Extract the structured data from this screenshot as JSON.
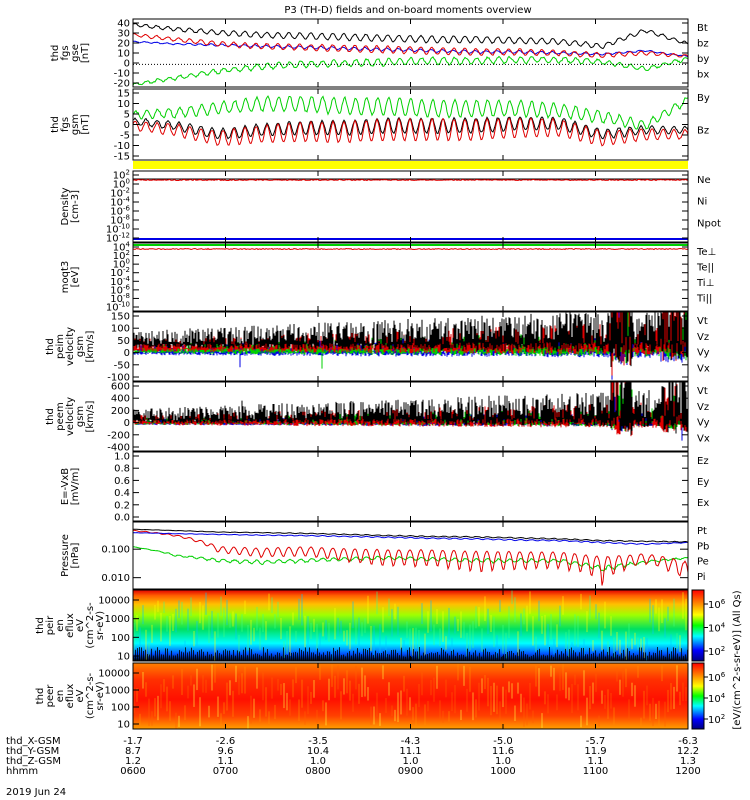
{
  "title": "P3 (TH-D) fields and on-board moments overview",
  "date_label": "2019 Jun 24",
  "colors": {
    "black": "#000000",
    "red": "#e00000",
    "blue": "#0000e6",
    "green": "#00d000",
    "yellow": "#ffff00"
  },
  "chart_data": [
    {
      "type": "line",
      "panel": "fgs_gse",
      "ylabel": [
        "thd",
        "fgs",
        "gse",
        "[nT]"
      ],
      "yticks": [
        "40",
        "30",
        "20",
        "10",
        "0",
        "-10",
        "-20"
      ],
      "ylim": [
        -20,
        40
      ],
      "legend": [
        "Bt",
        "bz",
        "by",
        "bx"
      ],
      "series": [
        {
          "name": "Bt",
          "color": "black",
          "values": [
            35,
            31,
            28,
            26,
            25,
            24,
            23,
            22,
            22,
            21,
            20,
            16,
            30,
            18
          ]
        },
        {
          "name": "bz",
          "color": "red",
          "values": [
            26,
            22,
            18,
            16,
            15,
            14,
            13,
            12,
            11,
            11,
            10,
            8,
            10,
            7
          ]
        },
        {
          "name": "by",
          "color": "blue",
          "values": [
            20,
            18,
            17,
            16,
            15,
            14,
            13,
            12,
            11,
            11,
            10,
            9,
            12,
            7
          ]
        },
        {
          "name": "bx",
          "color": "green",
          "values": [
            -18,
            -12,
            -6,
            -2,
            0,
            1,
            2,
            3,
            3,
            4,
            4,
            2,
            -4,
            5
          ]
        }
      ]
    },
    {
      "type": "line",
      "panel": "fgs_gsm",
      "ylabel": [
        "thd",
        "fgs",
        "gsm",
        "[nT]"
      ],
      "yticks": [
        "15",
        "10",
        "5",
        "0",
        "-5",
        "-10",
        "-15"
      ],
      "ylim": [
        -18,
        15
      ],
      "legend": [
        "By",
        "Bz"
      ],
      "series": [
        {
          "name": "By",
          "color": "green",
          "values": [
            3,
            4,
            6,
            8,
            8,
            7,
            7,
            6,
            6,
            6,
            5,
            2,
            -2,
            10
          ]
        },
        {
          "name": "Bz",
          "color": "red",
          "values": [
            -2,
            -4,
            -8,
            -6,
            -5,
            -5,
            -4,
            -4,
            -4,
            -3,
            -3,
            -8,
            -6,
            -6
          ]
        }
      ]
    },
    {
      "type": "line",
      "panel": "density",
      "ylabel": [
        "Density",
        "[cm-3]"
      ],
      "yticks": [
        "10^2",
        "10^0",
        "10^-2",
        "10^-4",
        "10^-6",
        "10^-8",
        "10^-10",
        "10^-12"
      ],
      "legend": [
        "Ne",
        "Ni",
        "Npot"
      ]
    },
    {
      "type": "line",
      "panel": "temperature",
      "ylabel": [
        "moqt3",
        "[eV]"
      ],
      "yticks": [
        "10^4",
        "10^2",
        "10^0",
        "10^-2",
        "10^-4",
        "10^-6",
        "10^-8",
        "10^-10"
      ],
      "legend": [
        "Te⊥",
        "Te||",
        "Ti⊥",
        "Ti||"
      ]
    },
    {
      "type": "line",
      "panel": "ion_velocity",
      "ylabel": [
        "thd",
        "peim",
        "velocity",
        "gsm",
        "[km/s]"
      ],
      "yticks": [
        "150",
        "100",
        "50",
        "0",
        "-50",
        "-100"
      ],
      "ylim": [
        -100,
        150
      ],
      "legend": [
        "Vt",
        "Vz",
        "Vy",
        "Vx"
      ]
    },
    {
      "type": "line",
      "panel": "electron_velocity",
      "ylabel": [
        "thd",
        "peem",
        "velocity",
        "gsm",
        "[km/s]"
      ],
      "yticks": [
        "600",
        "400",
        "200",
        "0",
        "-200",
        "-400"
      ],
      "ylim": [
        -400,
        600
      ],
      "legend": [
        "Vt",
        "Vz",
        "Vy",
        "Vx"
      ]
    },
    {
      "type": "line",
      "panel": "efield",
      "ylabel": [
        "E=-VxB",
        "[mV/m]"
      ],
      "yticks": [
        "1.0",
        "0.8",
        "0.6",
        "0.4",
        "0.2",
        "0.0"
      ],
      "ylim": [
        0,
        1
      ],
      "legend": [
        "Ez",
        "Ey",
        "Ex"
      ]
    },
    {
      "type": "line",
      "panel": "pressure",
      "ylabel": [
        "Pressure",
        "[nPa]"
      ],
      "yticks": [
        "0.100",
        "0.010"
      ],
      "legend": [
        "Pt",
        "Pb",
        "Pe",
        "Pi"
      ],
      "series": [
        {
          "name": "Pt",
          "color": "black",
          "values": [
            0.5,
            0.45,
            0.4,
            0.38,
            0.36,
            0.33,
            0.3,
            0.28,
            0.27,
            0.25,
            0.23,
            0.2,
            0.19,
            0.18
          ]
        },
        {
          "name": "Pb",
          "color": "red",
          "values": [
            0.45,
            0.3,
            0.1,
            0.08,
            0.09,
            0.07,
            0.06,
            0.06,
            0.05,
            0.05,
            0.05,
            0.03,
            0.05,
            0.02
          ]
        },
        {
          "name": "Pe",
          "color": "green",
          "values": [
            0.12,
            0.06,
            0.04,
            0.035,
            0.04,
            0.045,
            0.05,
            0.045,
            0.04,
            0.04,
            0.04,
            0.02,
            0.035,
            0.05
          ]
        },
        {
          "name": "Pi",
          "color": "blue",
          "values": [
            0.38,
            0.35,
            0.33,
            0.31,
            0.3,
            0.28,
            0.26,
            0.24,
            0.23,
            0.21,
            0.2,
            0.17,
            0.15,
            0.17
          ]
        }
      ]
    },
    {
      "type": "heatmap",
      "panel": "peir",
      "ylabel": [
        "thd",
        "peir",
        "en",
        "eflux",
        "eV",
        "(cm^2-s-",
        "sr-eV)"
      ],
      "yticks": [
        "10000",
        "1000",
        "100",
        "10"
      ]
    },
    {
      "type": "heatmap",
      "panel": "peer",
      "ylabel": [
        "thd",
        "peer",
        "en",
        "eflux",
        "eV",
        "(cm^2-s-",
        "sr-eV)"
      ],
      "yticks": [
        "10000",
        "1000",
        "100",
        "10"
      ]
    }
  ],
  "colorbar_top": {
    "ticks": [
      "10^6",
      "10^4",
      "10^2"
    ]
  },
  "colorbar_bottom": {
    "ticks": [
      "10^6",
      "10^4",
      "10^2"
    ]
  },
  "colorbar_label": "[eV/(cm^2-s-sr-eV)] (All Qs)",
  "xaxis": {
    "row_labels": [
      "thd_X-GSM",
      "thd_Y-GSM",
      "thd_Z-GSM",
      "hhmm"
    ],
    "columns": [
      {
        "x": "-1.7",
        "y": "8.7",
        "z": "1.2",
        "t": "0600"
      },
      {
        "x": "-2.6",
        "y": "9.6",
        "z": "1.1",
        "t": "0700"
      },
      {
        "x": "-3.5",
        "y": "10.4",
        "z": "1.0",
        "t": "0800"
      },
      {
        "x": "-4.3",
        "y": "11.1",
        "z": "1.0",
        "t": "0900"
      },
      {
        "x": "-5.0",
        "y": "11.6",
        "z": "1.0",
        "t": "1000"
      },
      {
        "x": "-5.7",
        "y": "11.9",
        "z": "1.1",
        "t": "1100"
      },
      {
        "x": "-6.3",
        "y": "12.2",
        "z": "1.3",
        "t": "1200"
      }
    ]
  }
}
